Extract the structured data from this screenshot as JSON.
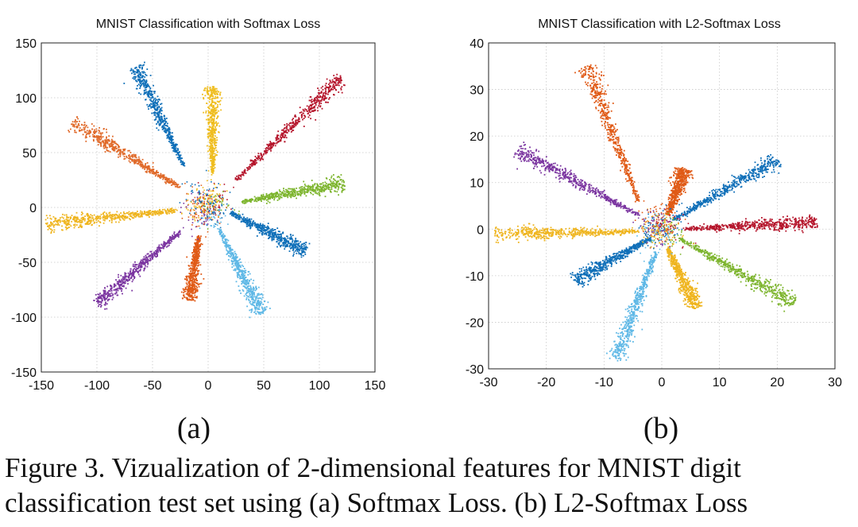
{
  "figure": {
    "caption": "Figure 3. Vizualization of 2-dimensional features for MNIST digit classification test set using (a) Softmax Loss. (b) L2-Softmax Loss"
  },
  "chart_data": [
    {
      "type": "scatter",
      "panel_label": "(a)",
      "title": "MNIST Classification with Softmax Loss",
      "xlabel": "",
      "ylabel": "",
      "xlim": [
        -150,
        150
      ],
      "ylim": [
        -150,
        150
      ],
      "xticks": [
        -150,
        -100,
        -50,
        0,
        50,
        100,
        150
      ],
      "yticks": [
        -150,
        -100,
        -50,
        0,
        50,
        100,
        150
      ],
      "grid": true,
      "legend": "none",
      "series": [
        {
          "color": "#b5152b",
          "start": [
            25,
            25
          ],
          "end": [
            120,
            118
          ]
        },
        {
          "color": "#7db52e",
          "start": [
            30,
            5
          ],
          "end": [
            122,
            22
          ]
        },
        {
          "color": "#0f6fb8",
          "start": [
            20,
            -5
          ],
          "end": [
            88,
            -40
          ]
        },
        {
          "color": "#5fb8e6",
          "start": [
            10,
            -20
          ],
          "end": [
            48,
            -97
          ]
        },
        {
          "color": "#e05a16",
          "start": [
            -8,
            -25
          ],
          "end": [
            -17,
            -85
          ]
        },
        {
          "color": "#7b35a0",
          "start": [
            -25,
            -22
          ],
          "end": [
            -100,
            -88
          ]
        },
        {
          "color": "#efb51f",
          "start": [
            -30,
            -3
          ],
          "end": [
            -145,
            -15
          ]
        },
        {
          "color": "#e06a2a",
          "start": [
            -25,
            18
          ],
          "end": [
            -122,
            78
          ]
        },
        {
          "color": "#0f6fb8",
          "start": [
            -22,
            38
          ],
          "end": [
            -65,
            128
          ]
        },
        {
          "color": "#efbd1f",
          "start": [
            4,
            30
          ],
          "end": [
            4,
            110
          ]
        }
      ]
    },
    {
      "type": "scatter",
      "panel_label": "(b)",
      "title": "MNIST Classification with L2-Softmax Loss",
      "xlabel": "",
      "ylabel": "",
      "xlim": [
        -30,
        30
      ],
      "ylim": [
        -30,
        40
      ],
      "xticks": [
        -30,
        -20,
        -10,
        0,
        10,
        20,
        30
      ],
      "yticks": [
        -30,
        -20,
        -10,
        0,
        10,
        20,
        30,
        40
      ],
      "grid": true,
      "legend": "none",
      "series": [
        {
          "color": "#e05a16",
          "start": [
            -4,
            6
          ],
          "end": [
            -13,
            35
          ]
        },
        {
          "color": "#e05a16",
          "start": [
            1,
            3
          ],
          "end": [
            4,
            13
          ]
        },
        {
          "color": "#0f6fb8",
          "start": [
            2,
            2
          ],
          "end": [
            20,
            15
          ]
        },
        {
          "color": "#b5152b",
          "start": [
            4,
            0
          ],
          "end": [
            27,
            1.5
          ]
        },
        {
          "color": "#7db52e",
          "start": [
            3,
            -2
          ],
          "end": [
            23,
            -16
          ]
        },
        {
          "color": "#efb51f",
          "start": [
            1,
            -4
          ],
          "end": [
            6,
            -17
          ]
        },
        {
          "color": "#5fb8e6",
          "start": [
            -1,
            -5
          ],
          "end": [
            -8,
            -28
          ]
        },
        {
          "color": "#0f6fb8",
          "start": [
            -2,
            -2
          ],
          "end": [
            -15,
            -11
          ]
        },
        {
          "color": "#efb51f",
          "start": [
            -4,
            -0.5
          ],
          "end": [
            -29,
            -1
          ]
        },
        {
          "color": "#7b35a0",
          "start": [
            -4,
            3
          ],
          "end": [
            -25,
            17
          ]
        }
      ]
    }
  ]
}
